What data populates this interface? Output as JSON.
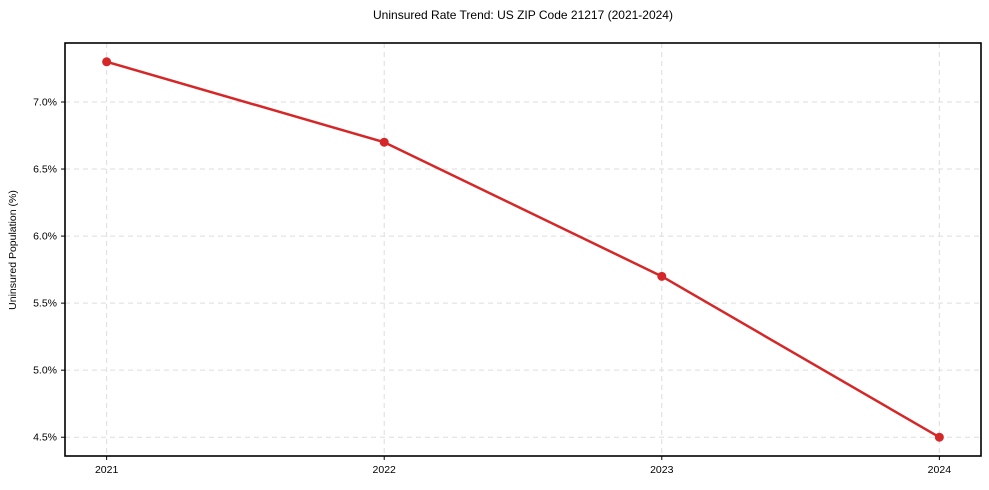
{
  "chart_data": {
    "type": "line",
    "title": "Uninsured Rate Trend: US ZIP Code 21217 (2021-2024)",
    "xlabel": "",
    "ylabel": "Uninsured Population (%)",
    "x": [
      2021,
      2022,
      2023,
      2024
    ],
    "series": [
      {
        "name": "Uninsured rate",
        "values": [
          7.3,
          6.7,
          5.7,
          4.5
        ]
      }
    ],
    "xtick_values": [
      2021,
      2022,
      2023,
      2024
    ],
    "xtick_labels": [
      "2021",
      "2022",
      "2023",
      "2024"
    ],
    "ytick_values": [
      4.5,
      5.0,
      5.5,
      6.0,
      6.5,
      7.0
    ],
    "ytick_labels": [
      "4.5%",
      "5.0%",
      "5.5%",
      "6.0%",
      "6.5%",
      "7.0%"
    ],
    "xlim": [
      2020.85,
      2024.15
    ],
    "ylim": [
      4.36,
      7.44
    ],
    "grid": true,
    "grid_style": "dashed",
    "legend_position": "none",
    "colors": {
      "line": "#d62728",
      "marker": "#d62728",
      "grid": "#dddddd",
      "spine": "#000000",
      "text": "#000000",
      "background": "#ffffff"
    }
  }
}
